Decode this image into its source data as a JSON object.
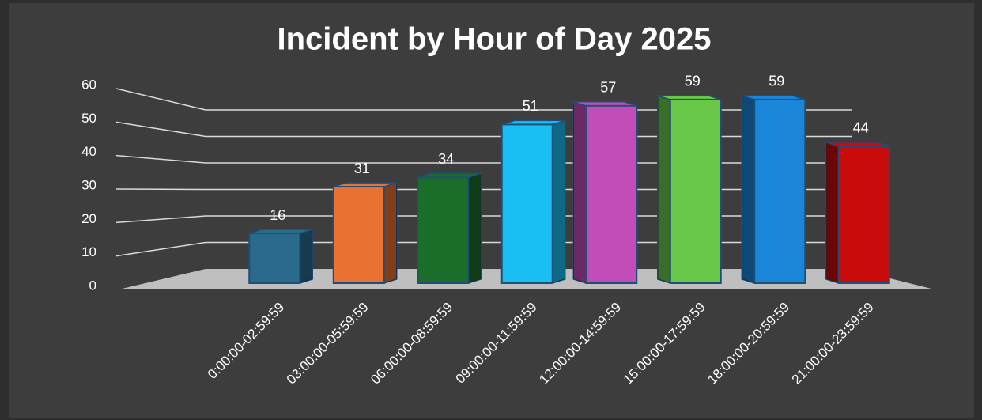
{
  "chart_data": {
    "type": "bar",
    "title": "Incident by Hour of Day 2025",
    "categories": [
      "0:00:00-02:59:59",
      "03:00:00-05:59:59",
      "06:00:00-08:59:59",
      "09:00:00-11:59:59",
      "12:00:00-14:59:59",
      "15:00:00-17:59:59",
      "18:00:00-20:59:59",
      "21:00:00-23:59:59"
    ],
    "values": [
      16,
      31,
      34,
      51,
      57,
      59,
      59,
      44
    ],
    "colors": [
      "#2a6a8a",
      "#e97132",
      "#1b6e2a",
      "#19bff2",
      "#c24db8",
      "#69c74a",
      "#1a86d8",
      "#c80a0a"
    ],
    "ylim": [
      0,
      60
    ],
    "yticks": [
      0,
      10,
      20,
      30,
      40,
      50,
      60
    ],
    "grid": true,
    "data_labels": true
  }
}
